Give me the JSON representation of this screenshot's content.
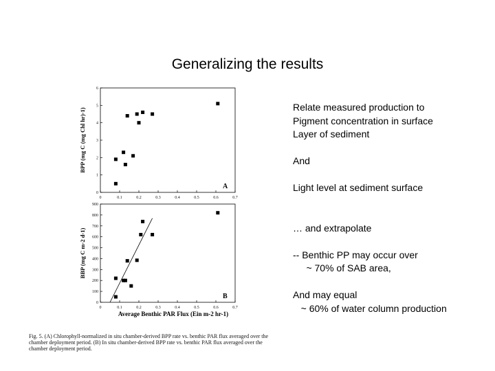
{
  "slide": {
    "title": "Generalizing the results",
    "notes": [
      "Relate measured production to",
      "Pigment concentration in surface",
      "Layer of sediment",
      "",
      "And",
      "",
      "Light level at sediment surface",
      "",
      "",
      "… and extrapolate",
      "",
      "-- Benthic PP may occur over",
      "     ~ 70% of SAB area,",
      "",
      "And may equal",
      "   ~ 60% of water column production"
    ],
    "caption": "Fig. 5. (A) Chlorophyll-normalized in situ chamber-derived BPP rate vs. benthic PAR flux averaged over the chamber deployment period. (B) In situ chamber-derived BPP rate vs. benthic PAR flux averaged over the chamber deployment period."
  },
  "chart_data": [
    {
      "type": "scatter",
      "panel_label": "A",
      "ylabel": "BPP (mg C (mg Chl hr)-1)",
      "xlim": [
        0,
        0.7
      ],
      "ylim": [
        0,
        6
      ],
      "xticks": [
        "0",
        "0.1",
        "0.2",
        "0.3",
        "0.4",
        "0.5",
        "0.6",
        "0.7"
      ],
      "yticks": [
        "0",
        "1",
        "2",
        "3",
        "4",
        "5",
        "6"
      ],
      "points": [
        {
          "x": 0.08,
          "y": 0.5
        },
        {
          "x": 0.08,
          "y": 1.9
        },
        {
          "x": 0.12,
          "y": 2.3
        },
        {
          "x": 0.13,
          "y": 1.6
        },
        {
          "x": 0.14,
          "y": 4.4
        },
        {
          "x": 0.17,
          "y": 2.1
        },
        {
          "x": 0.19,
          "y": 4.5
        },
        {
          "x": 0.2,
          "y": 4.0
        },
        {
          "x": 0.22,
          "y": 4.6
        },
        {
          "x": 0.27,
          "y": 4.5
        },
        {
          "x": 0.61,
          "y": 5.1
        }
      ],
      "grid": false
    },
    {
      "type": "scatter",
      "panel_label": "B",
      "xlabel": "Average Benthic PAR Flux (Ein m-2 hr-1)",
      "ylabel": "BBP (mg C m-2 d-1)",
      "xlim": [
        0,
        0.7
      ],
      "ylim": [
        0,
        900
      ],
      "xticks": [
        "0",
        "0.1",
        "0.2",
        "0.3",
        "0.4",
        "0.5",
        "0.6",
        "0.7"
      ],
      "yticks": [
        "0",
        "100",
        "200",
        "300",
        "400",
        "500",
        "600",
        "700",
        "800",
        "900"
      ],
      "points": [
        {
          "x": 0.08,
          "y": 50
        },
        {
          "x": 0.08,
          "y": 220
        },
        {
          "x": 0.12,
          "y": 200
        },
        {
          "x": 0.13,
          "y": 200
        },
        {
          "x": 0.14,
          "y": 380
        },
        {
          "x": 0.16,
          "y": 150
        },
        {
          "x": 0.19,
          "y": 385
        },
        {
          "x": 0.21,
          "y": 620
        },
        {
          "x": 0.22,
          "y": 740
        },
        {
          "x": 0.27,
          "y": 620
        },
        {
          "x": 0.61,
          "y": 820
        }
      ],
      "fit_line": {
        "x": [
          0.05,
          0.27
        ],
        "y": [
          0,
          770
        ]
      },
      "grid": false
    }
  ]
}
